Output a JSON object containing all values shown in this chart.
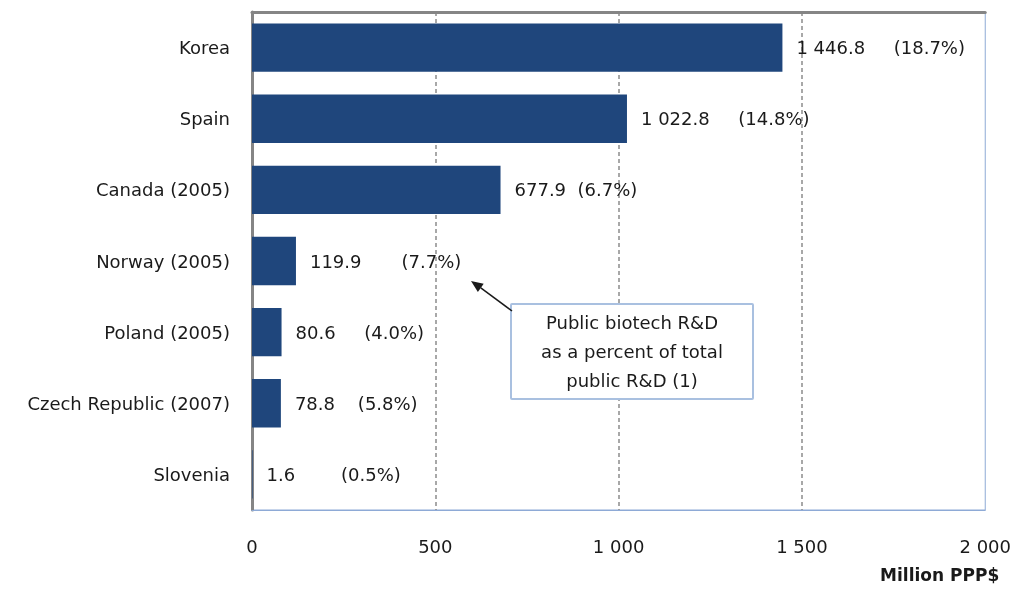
{
  "chart_data": {
    "type": "bar",
    "orientation": "horizontal",
    "categories": [
      "Korea",
      "Spain",
      "Canada (2005)",
      "Norway (2005)",
      "Poland (2005)",
      "Czech Republic (2007)",
      "Slovenia"
    ],
    "values": [
      1446.8,
      1022.8,
      677.9,
      119.9,
      80.6,
      78.8,
      1.6
    ],
    "color": "#1f467c",
    "value_labels": [
      "1 446.8     (18.7%)",
      "1 022.8     (14.8%)",
      "677.9  (6.7%)",
      "119.9       (7.7%)",
      "80.6     (4.0%)",
      "78.8    (5.8%)",
      "1.6        (0.5%)"
    ],
    "xlabel": "Million PPP$",
    "xlim": [
      0,
      2000
    ],
    "xticks": [
      0,
      500,
      {
        "value": 1000,
        "label": "1 000"
      },
      {
        "value": 1500,
        "label": "1 500"
      },
      {
        "value": 2000,
        "label": "2 000"
      }
    ],
    "grid": "x",
    "annotations": [
      "Public biotech R&D as a percent of total public R&D (1)"
    ]
  }
}
